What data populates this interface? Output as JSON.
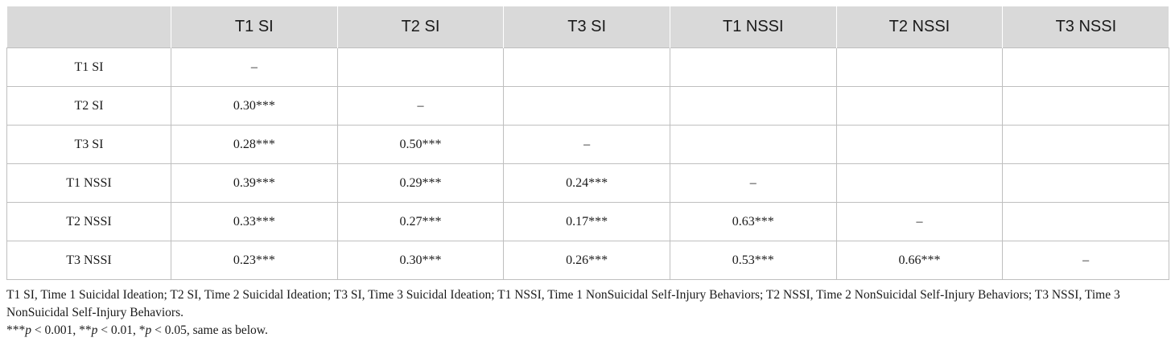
{
  "table": {
    "headers": [
      "",
      "T1 SI",
      "T2 SI",
      "T3 SI",
      "T1 NSSI",
      "T2 NSSI",
      "T3 NSSI"
    ],
    "rows": [
      {
        "label": "T1 SI",
        "cells": [
          "–",
          "",
          "",
          "",
          "",
          ""
        ]
      },
      {
        "label": "T2 SI",
        "cells": [
          "0.30***",
          "–",
          "",
          "",
          "",
          ""
        ]
      },
      {
        "label": "T3 SI",
        "cells": [
          "0.28***",
          "0.50***",
          "–",
          "",
          "",
          ""
        ]
      },
      {
        "label": "T1 NSSI",
        "cells": [
          "0.39***",
          "0.29***",
          "0.24***",
          "–",
          "",
          ""
        ]
      },
      {
        "label": "T2 NSSI",
        "cells": [
          "0.33***",
          "0.27***",
          "0.17***",
          "0.63***",
          "–",
          ""
        ]
      },
      {
        "label": "T3 NSSI",
        "cells": [
          "0.23***",
          "0.30***",
          "0.26***",
          "0.53***",
          "0.66***",
          "–"
        ]
      }
    ]
  },
  "notes": {
    "abbreviations": "T1 SI, Time 1 Suicidal Ideation; T2 SI, Time 2 Suicidal Ideation; T3 SI, Time 3 Suicidal Ideation; T1 NSSI, Time 1 NonSuicidal Self-Injury Behaviors; T2 NSSI, Time 2 NonSuicidal Self-Injury Behaviors; T3 NSSI, Time 3 NonSuicidal Self-Injury Behaviors.",
    "sig_p1_stars": "***",
    "sig_p1_val": " < 0.001, ",
    "sig_p2_stars": "**",
    "sig_p2_val": " < 0.01, ",
    "sig_p3_stars": "*",
    "sig_p3_val": " < 0.05, same as below.",
    "p_symbol": "p"
  }
}
